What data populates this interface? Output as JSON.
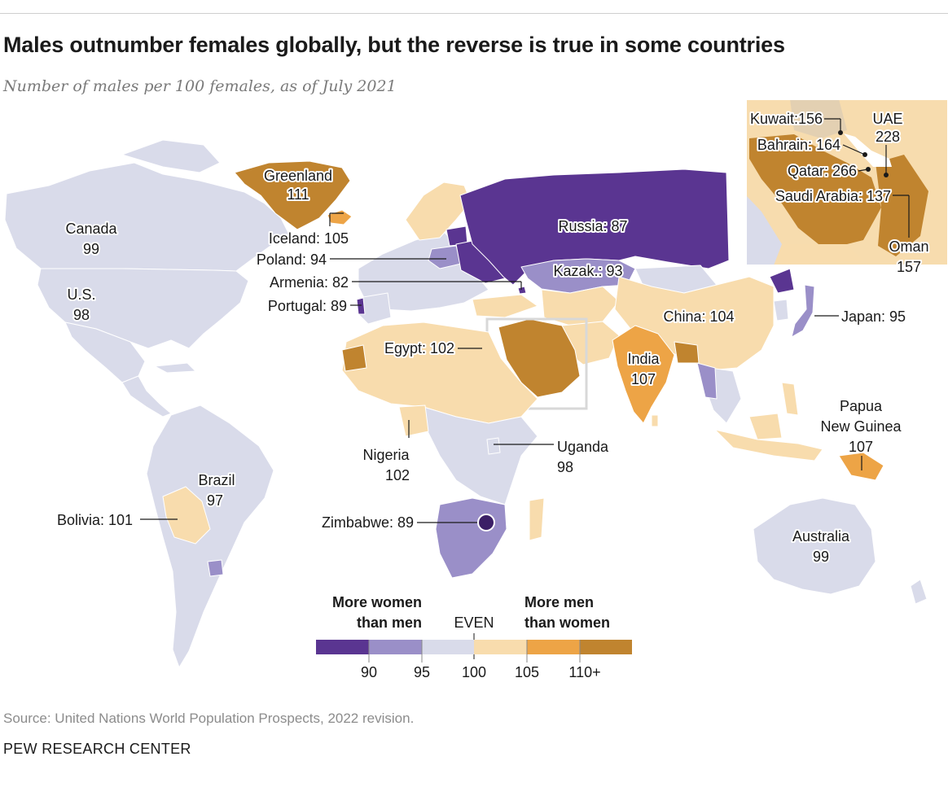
{
  "header": {
    "title": "Males outnumber females globally, but the reverse is true in some countries",
    "subtitle": "Number of males per 100 females, as of July 2021"
  },
  "colors": {
    "ocean": "#ffffff",
    "border": "#ffffff",
    "bin_below_90": "#5a3591",
    "bin_90_95": "#9a8fc8",
    "bin_95_100": "#d9dbea",
    "bin_100_105": "#f8dcad",
    "bin_105_110": "#eda446",
    "bin_110_plus": "#c0842f"
  },
  "countries": [
    {
      "name": "Greenland",
      "value": "111"
    },
    {
      "name": "Canada",
      "value": "99"
    },
    {
      "name": "U.S.",
      "value": "98"
    },
    {
      "name": "Iceland",
      "value": "105"
    },
    {
      "name": "Poland",
      "value": "94"
    },
    {
      "name": "Armenia",
      "value": "82"
    },
    {
      "name": "Portugal",
      "value": "89"
    },
    {
      "name": "Russia",
      "value": "87"
    },
    {
      "name": "Kazak.",
      "value": "93"
    },
    {
      "name": "China",
      "value": "104"
    },
    {
      "name": "Japan",
      "value": "95"
    },
    {
      "name": "India",
      "value": "107"
    },
    {
      "name": "Egypt",
      "value": "102"
    },
    {
      "name": "Nigeria",
      "value": "102"
    },
    {
      "name": "Uganda",
      "value": "98"
    },
    {
      "name": "Zimbabwe",
      "value": "89"
    },
    {
      "name": "Brazil",
      "value": "97"
    },
    {
      "name": "Bolivia",
      "value": "101"
    },
    {
      "name": "Papua New Guinea",
      "value": "107"
    },
    {
      "name": "Australia",
      "value": "99"
    },
    {
      "name": "Kuwait",
      "value": "156"
    },
    {
      "name": "UAE",
      "value": "228"
    },
    {
      "name": "Bahrain",
      "value": "164"
    },
    {
      "name": "Qatar",
      "value": "266"
    },
    {
      "name": "Saudi Arabia",
      "value": "137"
    },
    {
      "name": "Oman",
      "value": "157"
    }
  ],
  "labels": {
    "greenland_name": "Greenland",
    "greenland_value": "111",
    "canada_name": "Canada",
    "canada_value": "99",
    "us_name": "U.S.",
    "us_value": "98",
    "iceland": "Iceland: 105",
    "poland": "Poland: 94",
    "armenia": "Armenia: 82",
    "portugal": "Portugal: 89",
    "russia": "Russia: 87",
    "kazak": "Kazak.: 93",
    "china": "China: 104",
    "japan": "Japan: 95",
    "india_name": "India",
    "india_value": "107",
    "egypt": "Egypt: 102",
    "nigeria_name": "Nigeria",
    "nigeria_value": "102",
    "uganda_name": "Uganda",
    "uganda_value": "98",
    "zimbabwe": "Zimbabwe: 89",
    "brazil_name": "Brazil",
    "brazil_value": "97",
    "bolivia": "Bolivia: 101",
    "png_line1": "Papua",
    "png_line2": "New Guinea",
    "png_value": "107",
    "australia_name": "Australia",
    "australia_value": "99",
    "kuwait": "Kuwait:156",
    "uae_name": "UAE",
    "uae_value": "228",
    "bahrain": "Bahrain: 164",
    "qatar": "Qatar: 266",
    "saudi": "Saudi Arabia: 137",
    "oman_name": "Oman",
    "oman_value": "157"
  },
  "legend": {
    "left_line1": "More women",
    "left_line2": "than men",
    "even": "EVEN",
    "right_line1": "More men",
    "right_line2": "than women",
    "ticks": [
      "90",
      "95",
      "100",
      "105",
      "110+"
    ]
  },
  "footer": {
    "source": "Source: United Nations World Population Prospects, 2022 revision.",
    "brand": "PEW RESEARCH CENTER"
  }
}
